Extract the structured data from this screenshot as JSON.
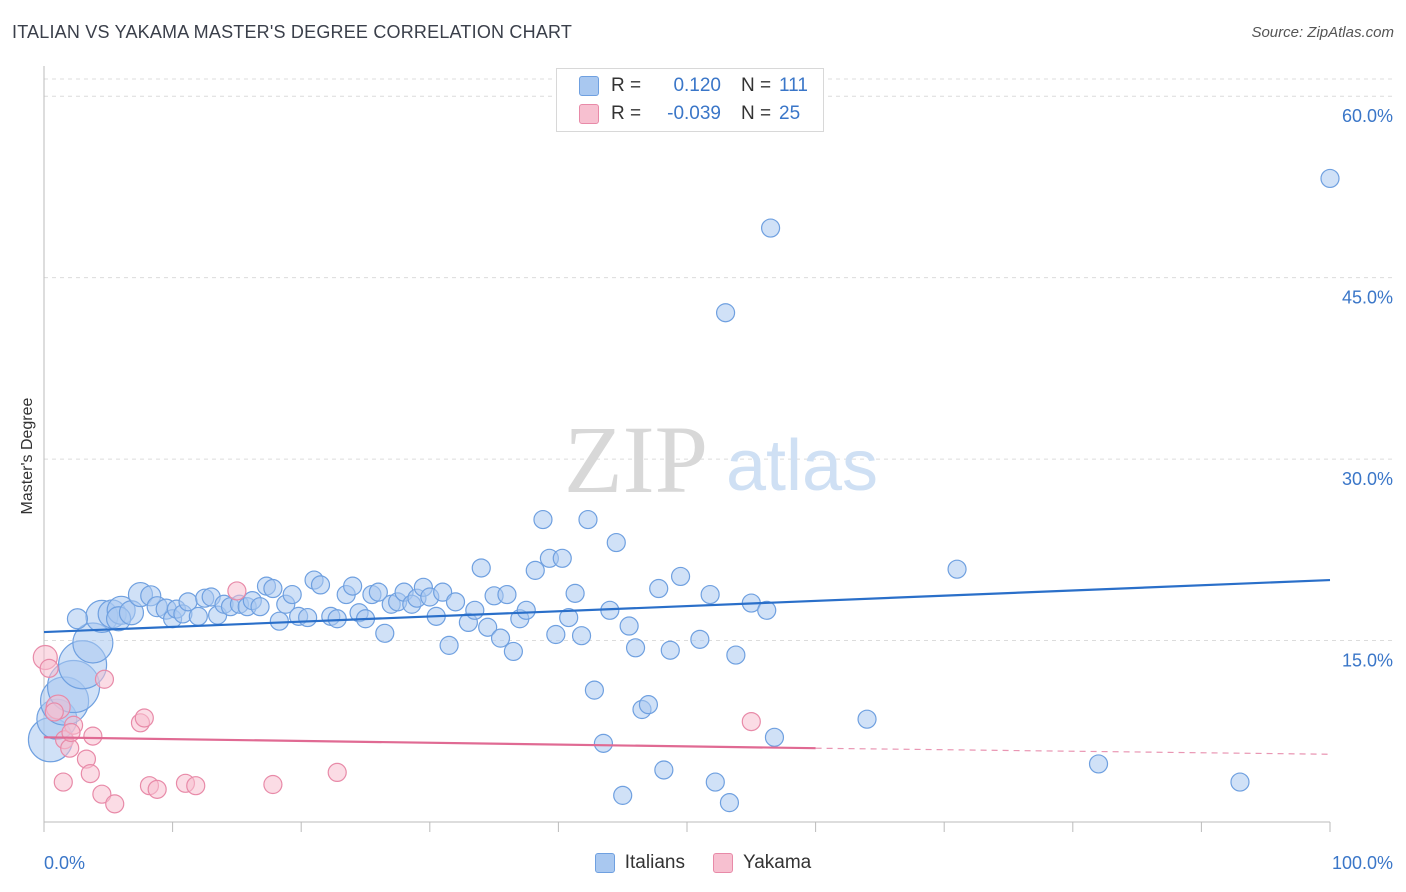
{
  "title": "ITALIAN VS YAKAMA MASTER'S DEGREE CORRELATION CHART",
  "source": "Source: ZipAtlas.com",
  "watermark": {
    "zip": "ZIP",
    "atlas": "atlas"
  },
  "legend": {
    "rows": [
      {
        "r_label": "R =",
        "r_value": "0.120",
        "n_label": "N =",
        "n_value": "111",
        "color": "#a9c8f0",
        "border": "#6fa0e0"
      },
      {
        "r_label": "R =",
        "r_value": "-0.039",
        "n_label": "N =",
        "n_value": "25",
        "color": "#f7c0d0",
        "border": "#e88aa8"
      }
    ]
  },
  "bottom_legend": [
    {
      "label": "Italians",
      "color": "#a9c8f0",
      "border": "#6fa0e0"
    },
    {
      "label": "Yakama",
      "color": "#f7c0d0",
      "border": "#e88aa8"
    }
  ],
  "chart_data": {
    "type": "scatter",
    "xlabel": "",
    "ylabel": "Master's Degree",
    "xlim": [
      0,
      100
    ],
    "ylim": [
      0,
      62
    ],
    "x_tick_labels": [
      "0.0%",
      "100.0%"
    ],
    "y_ticks": [
      15,
      30,
      45,
      60
    ],
    "y_tick_labels": [
      "15.0%",
      "30.0%",
      "45.0%",
      "60.0%"
    ],
    "grid": "horizontal dashed",
    "legend_position": "top-center",
    "series": [
      {
        "name": "Italians",
        "color": "#6fa0e0",
        "fill": "#a9c8f0",
        "trend": {
          "x": [
            0,
            100
          ],
          "y": [
            15.7,
            20.0
          ],
          "color": "#2a6fc9"
        },
        "points": [
          [
            0.5,
            6.8,
            22
          ],
          [
            1.0,
            8.5,
            20
          ],
          [
            1.6,
            10.0,
            24
          ],
          [
            2.3,
            11.2,
            26
          ],
          [
            3.0,
            13.0,
            24
          ],
          [
            3.8,
            14.8,
            20
          ],
          [
            4.5,
            17.0,
            16
          ],
          [
            5.3,
            17.2,
            14
          ],
          [
            6.0,
            17.5,
            14
          ],
          [
            5.8,
            16.8,
            12
          ],
          [
            6.8,
            17.3,
            12
          ],
          [
            7.5,
            18.8,
            12
          ],
          [
            8.3,
            18.7,
            10
          ],
          [
            8.8,
            17.8,
            10
          ],
          [
            9.5,
            17.6,
            10
          ],
          [
            10.0,
            16.8,
            9
          ],
          [
            10.3,
            17.6,
            9
          ],
          [
            10.8,
            17.2,
            9
          ],
          [
            11.2,
            18.2,
            9
          ],
          [
            12.0,
            17.0,
            9
          ],
          [
            12.5,
            18.5,
            9
          ],
          [
            13.0,
            18.6,
            9
          ],
          [
            13.5,
            17.1,
            9
          ],
          [
            14.0,
            18.0,
            9
          ],
          [
            14.5,
            17.8,
            9
          ],
          [
            15.2,
            18.0,
            9
          ],
          [
            15.8,
            17.8,
            9
          ],
          [
            16.2,
            18.3,
            9
          ],
          [
            16.8,
            17.8,
            9
          ],
          [
            17.3,
            19.5,
            9
          ],
          [
            17.8,
            19.3,
            9
          ],
          [
            18.3,
            16.6,
            9
          ],
          [
            18.8,
            18.0,
            9
          ],
          [
            19.3,
            18.8,
            9
          ],
          [
            19.8,
            17.0,
            9
          ],
          [
            20.5,
            16.9,
            9
          ],
          [
            21.0,
            20.0,
            9
          ],
          [
            21.5,
            19.6,
            9
          ],
          [
            22.3,
            17.0,
            9
          ],
          [
            22.8,
            16.8,
            9
          ],
          [
            23.5,
            18.8,
            9
          ],
          [
            24.0,
            19.5,
            9
          ],
          [
            24.5,
            17.3,
            9
          ],
          [
            25.0,
            16.8,
            9
          ],
          [
            25.5,
            18.8,
            9
          ],
          [
            26.0,
            19.0,
            9
          ],
          [
            26.5,
            15.6,
            9
          ],
          [
            27.0,
            18.0,
            9
          ],
          [
            27.5,
            18.2,
            9
          ],
          [
            28.0,
            19.0,
            9
          ],
          [
            28.6,
            18.0,
            9
          ],
          [
            29.0,
            18.5,
            9
          ],
          [
            29.5,
            19.4,
            9
          ],
          [
            30.0,
            18.6,
            9
          ],
          [
            30.5,
            17.0,
            9
          ],
          [
            31.0,
            19.0,
            9
          ],
          [
            31.5,
            14.6,
            9
          ],
          [
            32.0,
            18.2,
            9
          ],
          [
            33.0,
            16.5,
            9
          ],
          [
            33.5,
            17.5,
            9
          ],
          [
            34.0,
            21.0,
            9
          ],
          [
            34.5,
            16.1,
            9
          ],
          [
            35.0,
            18.7,
            9
          ],
          [
            35.5,
            15.2,
            9
          ],
          [
            36.0,
            18.8,
            9
          ],
          [
            36.5,
            14.1,
            9
          ],
          [
            37.0,
            16.8,
            9
          ],
          [
            37.5,
            17.5,
            9
          ],
          [
            38.2,
            20.8,
            9
          ],
          [
            38.8,
            25.0,
            9
          ],
          [
            39.3,
            21.8,
            9
          ],
          [
            39.8,
            15.5,
            9
          ],
          [
            40.3,
            21.8,
            9
          ],
          [
            40.8,
            16.9,
            9
          ],
          [
            41.3,
            18.9,
            9
          ],
          [
            41.8,
            15.4,
            9
          ],
          [
            42.3,
            25.0,
            9
          ],
          [
            42.8,
            10.9,
            9
          ],
          [
            43.5,
            6.5,
            9
          ],
          [
            44.0,
            17.5,
            9
          ],
          [
            44.5,
            23.1,
            9
          ],
          [
            45.0,
            2.2,
            9
          ],
          [
            45.5,
            16.2,
            9
          ],
          [
            46.0,
            14.4,
            9
          ],
          [
            46.5,
            9.3,
            9
          ],
          [
            47.0,
            9.7,
            9
          ],
          [
            47.8,
            19.3,
            9
          ],
          [
            48.2,
            4.3,
            9
          ],
          [
            48.7,
            14.2,
            9
          ],
          [
            49.5,
            20.3,
            9
          ],
          [
            51.0,
            15.1,
            9
          ],
          [
            51.8,
            18.8,
            9
          ],
          [
            52.2,
            3.3,
            9
          ],
          [
            53.0,
            42.1,
            9
          ],
          [
            53.3,
            1.6,
            9
          ],
          [
            53.8,
            13.8,
            9
          ],
          [
            55.0,
            18.1,
            9
          ],
          [
            56.2,
            17.5,
            9
          ],
          [
            56.5,
            49.1,
            9
          ],
          [
            56.8,
            7.0,
            9
          ],
          [
            64.0,
            8.5,
            9
          ],
          [
            71.0,
            20.9,
            9
          ],
          [
            82.0,
            4.8,
            9
          ],
          [
            93.0,
            3.3,
            9
          ],
          [
            100.0,
            53.2,
            9
          ],
          [
            2.6,
            16.8,
            10
          ]
        ]
      },
      {
        "name": "Yakama",
        "color": "#e88aa8",
        "fill": "#f7c0d0",
        "trend": {
          "x": [
            0,
            60
          ],
          "y": [
            7.0,
            6.1
          ],
          "dashed_to": [
            100,
            5.6
          ],
          "color": "#e06a93"
        },
        "points": [
          [
            0.1,
            13.6,
            12
          ],
          [
            0.4,
            12.7,
            9
          ],
          [
            1.1,
            9.5,
            12
          ],
          [
            1.6,
            6.8,
            9
          ],
          [
            2.0,
            6.1,
            9
          ],
          [
            2.3,
            8.0,
            9
          ],
          [
            3.3,
            5.2,
            9
          ],
          [
            3.6,
            4.0,
            9
          ],
          [
            3.8,
            7.1,
            9
          ],
          [
            1.5,
            3.3,
            9
          ],
          [
            4.5,
            2.3,
            9
          ],
          [
            4.7,
            11.8,
            9
          ],
          [
            5.5,
            1.5,
            9
          ],
          [
            7.5,
            8.2,
            9
          ],
          [
            7.8,
            8.6,
            9
          ],
          [
            8.2,
            3.0,
            9
          ],
          [
            8.8,
            2.7,
            9
          ],
          [
            11.0,
            3.2,
            9
          ],
          [
            11.8,
            3.0,
            9
          ],
          [
            15.0,
            19.1,
            9
          ],
          [
            17.8,
            3.1,
            9
          ],
          [
            22.8,
            4.1,
            9
          ],
          [
            55.0,
            8.3,
            9
          ],
          [
            0.8,
            9.1,
            9
          ],
          [
            2.1,
            7.4,
            9
          ]
        ]
      }
    ]
  }
}
